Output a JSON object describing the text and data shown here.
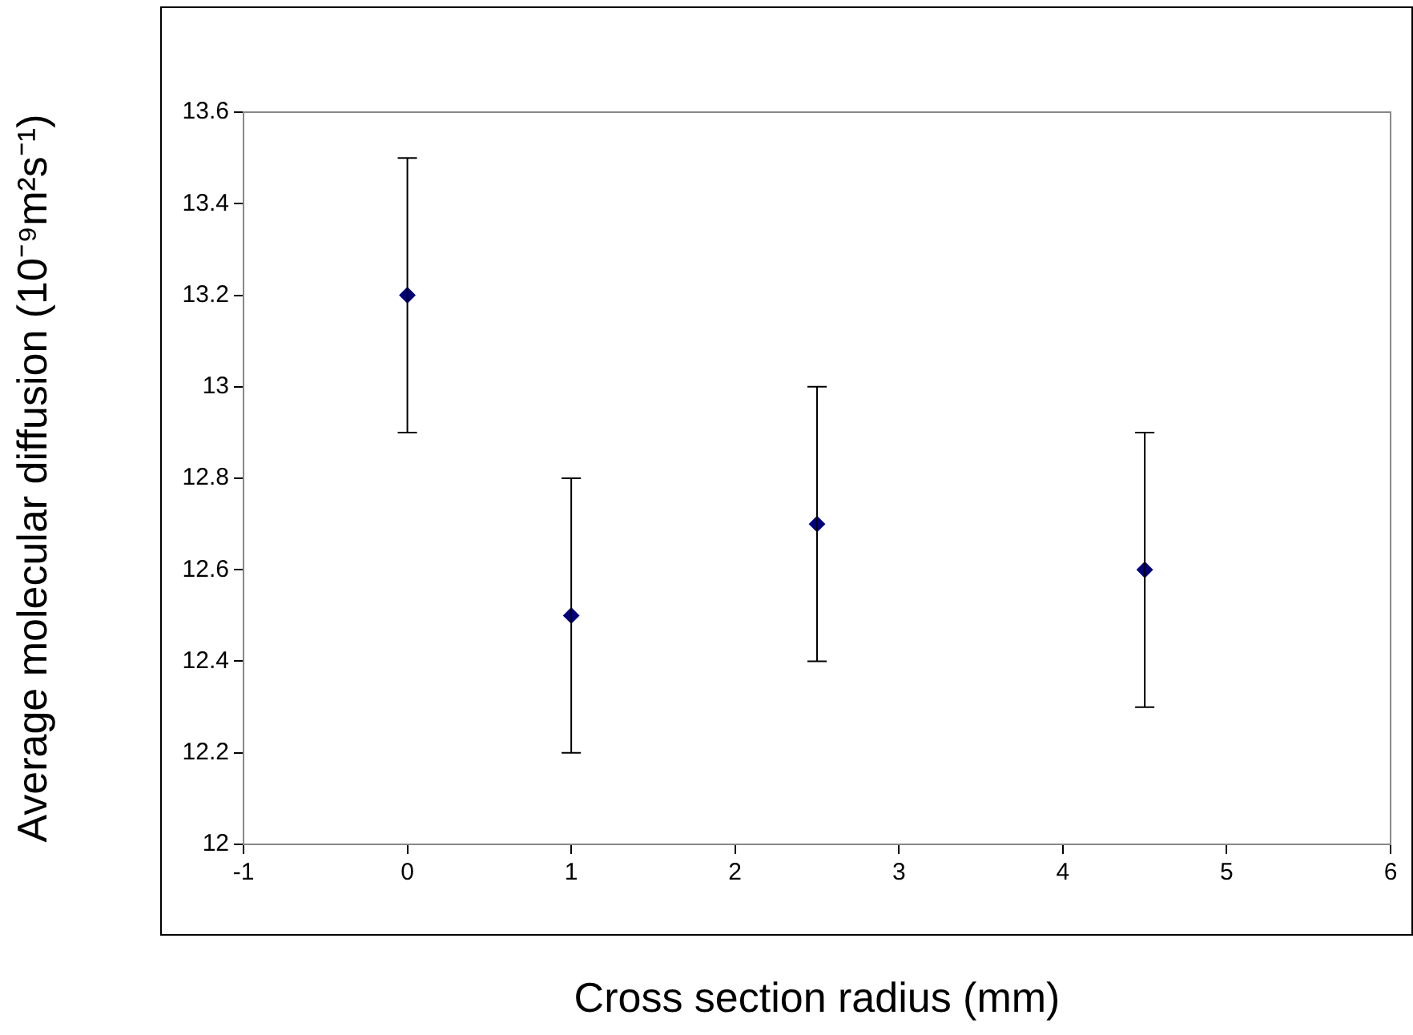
{
  "chart_data": {
    "type": "scatter",
    "xlabel": "Cross section radius (mm)",
    "ylabel": "Average molecular diffusion (10⁻⁹m²s⁻¹)",
    "x": [
      0,
      1,
      2.5,
      4.5
    ],
    "series": [
      {
        "color": "#000080",
        "values": [
          13.2,
          12.5,
          12.7,
          12.6
        ],
        "errors": [
          0.3,
          0.3,
          0.3,
          0.3
        ]
      }
    ],
    "xlim": [
      -1,
      6
    ],
    "xticks": [
      -1,
      0,
      1,
      2,
      3,
      4,
      5,
      6
    ],
    "ylim": [
      12,
      13.6
    ],
    "yticks": [
      12,
      12.2,
      12.4,
      12.6,
      12.8,
      13,
      13.2,
      13.4,
      13.6
    ],
    "grid": false,
    "legend": false,
    "marker": "diamond"
  }
}
